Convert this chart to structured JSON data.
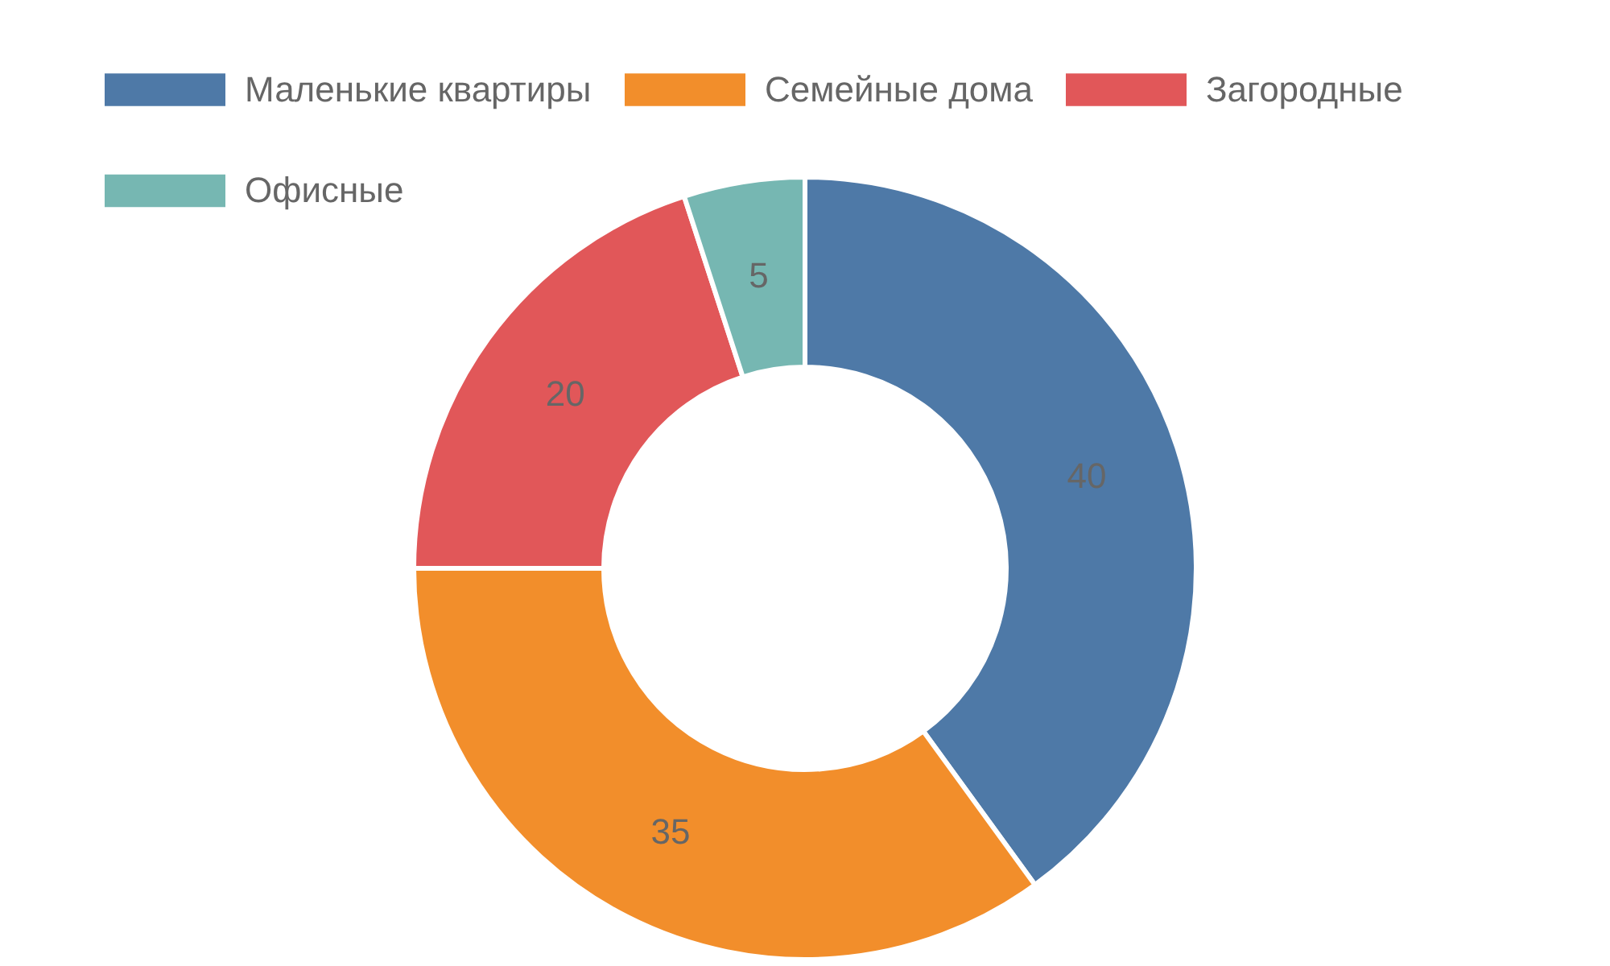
{
  "chart_data": {
    "type": "donut",
    "categories": [
      "Маленькие квартиры",
      "Семейные дома",
      "Загородные",
      "Офисные"
    ],
    "values": [
      40,
      35,
      20,
      5
    ],
    "colors": [
      "#4e79a7",
      "#f28e2b",
      "#e15759",
      "#76b7b2"
    ],
    "data_labels": true,
    "legend": "top"
  }
}
